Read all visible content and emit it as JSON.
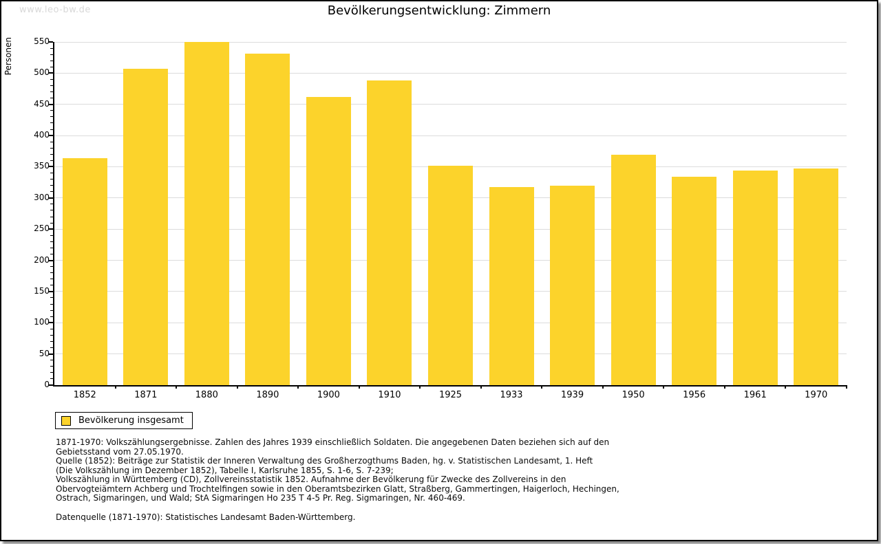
{
  "page": {
    "watermark": "www.leo-bw.de",
    "title": "Bevölkerungsentwicklung: Zimmern"
  },
  "chart_data": {
    "type": "bar",
    "title": "Bevölkerungsentwicklung: Zimmern",
    "xlabel": "",
    "ylabel": "Personen",
    "categories": [
      "1852",
      "1871",
      "1880",
      "1890",
      "1900",
      "1910",
      "1925",
      "1933",
      "1939",
      "1950",
      "1956",
      "1961",
      "1970"
    ],
    "values": [
      364,
      507,
      550,
      531,
      462,
      488,
      352,
      317,
      320,
      369,
      334,
      344,
      347
    ],
    "series_name": "Bevölkerung insgesamt",
    "ylim": [
      0,
      550
    ],
    "ytick_step": 50,
    "ytick_minor_step": 10,
    "grid": true,
    "bar_color": "#FCD32B",
    "grid_color": "#dcdcdc",
    "legend_position": "bottom-left"
  },
  "legend": {
    "label": "Bevölkerung insgesamt"
  },
  "footer": {
    "lines": [
      "1871-1970: Volkszählungsergebnisse. Zahlen des Jahres 1939 einschließlich Soldaten. Die angegebenen Daten beziehen sich auf den",
      "Gebietsstand vom 27.05.1970.",
      "Quelle (1852): Beiträge zur Statistik der Inneren Verwaltung des Großherzogthums Baden, hg. v. Statistischen Landesamt, 1. Heft",
      "(Die Volkszählung im Dezember 1852), Tabelle I, Karlsruhe 1855, S. 1-6, S. 7-239;",
      "Volkszählung in Württemberg (CD), Zollvereinsstatistik 1852. Aufnahme der Bevölkerung für Zwecke des Zollvereins in den",
      "Obervogteiämtern Achberg und Trochtelfingen sowie in den Oberamtsbezirken Glatt, Straßberg, Gammertingen, Haigerloch, Hechingen,",
      "Ostrach, Sigmaringen, und Wald; StA Sigmaringen Ho 235 T 4-5 Pr. Reg. Sigmaringen, Nr. 460-469."
    ],
    "datasource": "Datenquelle (1871-1970): Statistisches Landesamt Baden-Württemberg."
  }
}
